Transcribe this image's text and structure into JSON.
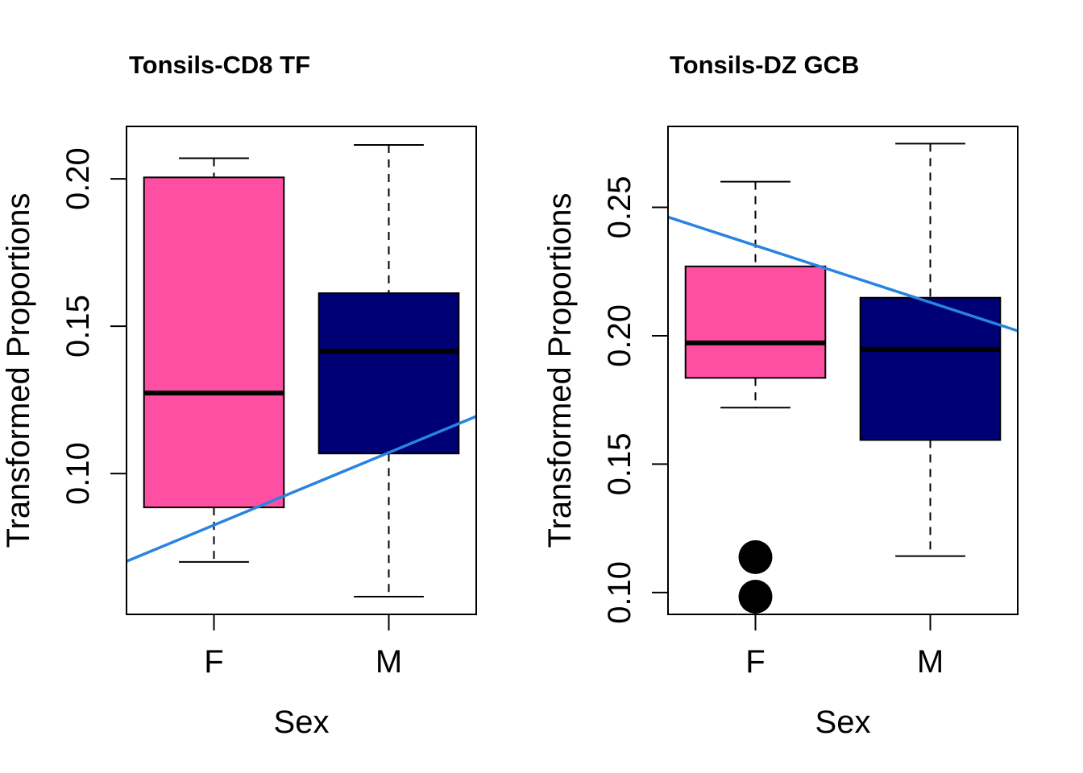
{
  "chart_data": [
    {
      "type": "box",
      "title": "Tonsils-CD8 TF",
      "xlabel": "Sex",
      "ylabel": "Transformed Proportions",
      "categories": [
        "F",
        "M"
      ],
      "ylim": [
        0.0522,
        0.2178
      ],
      "yticks": [
        0.1,
        0.15,
        0.2
      ],
      "ytick_labels": [
        "0.10",
        "0.15",
        "0.20"
      ],
      "boxes": [
        {
          "name": "F",
          "color": "#FF4FA3",
          "whisker_low": 0.07,
          "q1": 0.0885,
          "median": 0.1273,
          "q3": 0.2005,
          "whisker_high": 0.207,
          "outliers": []
        },
        {
          "name": "M",
          "color": "#000075",
          "whisker_low": 0.0582,
          "q1": 0.1068,
          "median": 0.1415,
          "q3": 0.1612,
          "whisker_high": 0.2115,
          "outliers": []
        }
      ],
      "trend_line": {
        "color": "#2884E0",
        "x_left_edge_value": 0.0702,
        "x_right_edge_value": 0.1194
      },
      "grid": false,
      "legend": "none"
    },
    {
      "type": "box",
      "title": "Tonsils-DZ GCB",
      "xlabel": "Sex",
      "ylabel": "Transformed Proportions",
      "categories": [
        "F",
        "M"
      ],
      "ylim": [
        0.0915,
        0.2815
      ],
      "yticks": [
        0.1,
        0.15,
        0.2,
        0.25
      ],
      "ytick_labels": [
        "0.10",
        "0.15",
        "0.20",
        "0.25"
      ],
      "boxes": [
        {
          "name": "F",
          "color": "#FF4FA3",
          "whisker_low": 0.172,
          "q1": 0.1836,
          "median": 0.1972,
          "q3": 0.227,
          "whisker_high": 0.26,
          "outliers": [
            0.1138,
            0.0984
          ]
        },
        {
          "name": "M",
          "color": "#000075",
          "whisker_low": 0.1142,
          "q1": 0.1594,
          "median": 0.1947,
          "q3": 0.2148,
          "whisker_high": 0.2748,
          "outliers": []
        }
      ],
      "trend_line": {
        "color": "#2884E0",
        "x_left_edge_value": 0.2462,
        "x_right_edge_value": 0.2019
      },
      "grid": false,
      "legend": "none"
    }
  ]
}
